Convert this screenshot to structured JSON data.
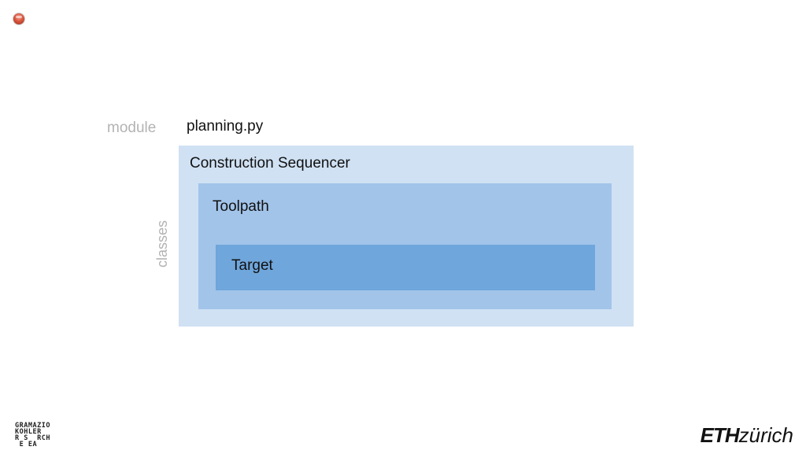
{
  "labels": {
    "module": "module",
    "classes": "classes"
  },
  "module_name": "planning.py",
  "classes": {
    "outer": "Construction Sequencer",
    "middle": "Toolpath",
    "inner": "Target"
  },
  "colors": {
    "outer": "#d0e1f3",
    "middle": "#a2c4e9",
    "inner": "#6fa6db",
    "label_gray": "#b3b3b3"
  },
  "logos": {
    "gramazio_kohler": {
      "lines": [
        "GRAMAZIO",
        "KOHLER",
        "R S  RCH",
        " E EA"
      ]
    },
    "eth": {
      "eth": "ETH",
      "zurich": "zürich"
    }
  }
}
